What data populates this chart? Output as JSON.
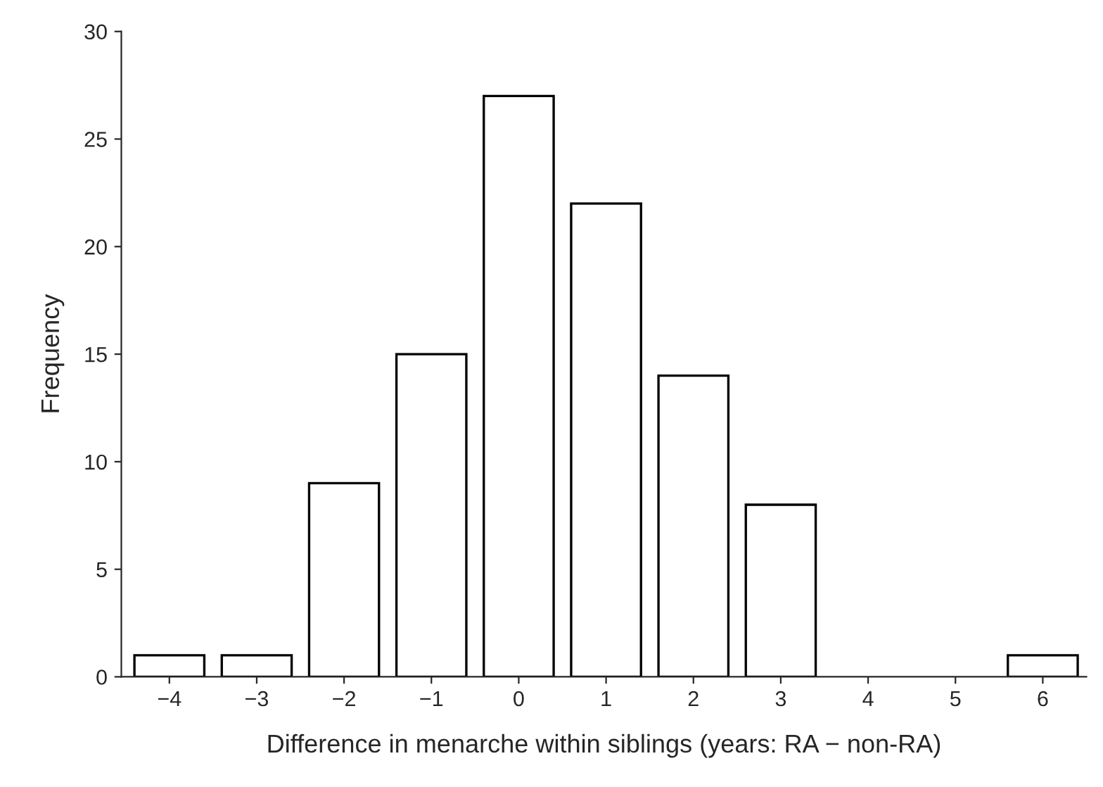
{
  "chart_data": {
    "type": "bar",
    "xlabel": "Difference in menarche within siblings (years: RA − non-RA)",
    "ylabel": "Frequency",
    "categories": [
      "−4",
      "−3",
      "−2",
      "−1",
      "0",
      "1",
      "2",
      "3",
      "4",
      "5",
      "6"
    ],
    "values": [
      1,
      1,
      9,
      15,
      27,
      22,
      14,
      8,
      0,
      0,
      1
    ],
    "color": "#ffffff",
    "ylim": [
      0,
      30
    ],
    "yticks": [
      0,
      5,
      10,
      15,
      20,
      25,
      30
    ],
    "grid": false
  }
}
